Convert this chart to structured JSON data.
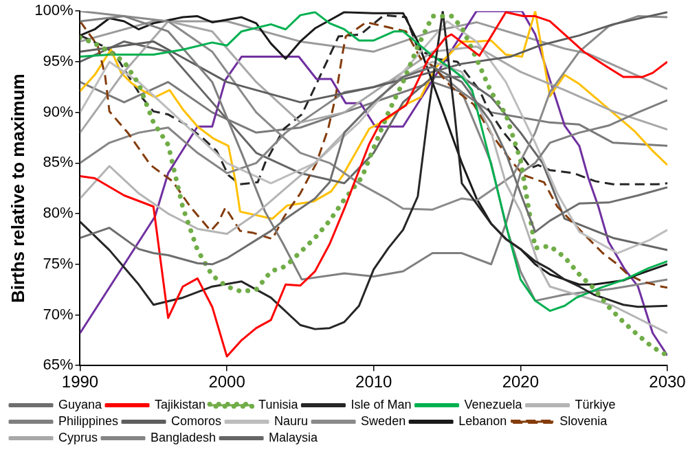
{
  "chart_data": {
    "type": "line",
    "ylabel": "Births relative to maximum",
    "xlim": [
      1990,
      2030
    ],
    "xticks": [
      1990,
      2000,
      2010,
      2020,
      2030
    ],
    "ylim": [
      65,
      100
    ],
    "yticks": [
      {
        "value": 65,
        "label": "65%"
      },
      {
        "value": 70,
        "label": "70%"
      },
      {
        "value": 75,
        "label": "75%"
      },
      {
        "value": 80,
        "label": "80%"
      },
      {
        "value": 85,
        "label": "85%"
      },
      {
        "value": 90,
        "label": "90%"
      },
      {
        "value": 95,
        "label": "95%"
      },
      {
        "value": 100,
        "label": "100%"
      }
    ],
    "grid": false,
    "legend": "bottom",
    "marker": "none",
    "series": [
      {
        "name": "Guyana",
        "color": "#6e6e6e",
        "line_style": "solid",
        "x": [
          1990,
          1992,
          1994,
          1995,
          1996,
          1998,
          1999,
          2000,
          2001,
          2002,
          2003,
          2004,
          2005,
          2006,
          2007,
          2008,
          2010,
          2012,
          2014,
          2016,
          2018,
          2019,
          2020,
          2021,
          2022,
          2024,
          2026,
          2028,
          2030
        ],
        "values": [
          77.6,
          78.6,
          76.5,
          76.1,
          75.9,
          75.1,
          75,
          75.6,
          76.5,
          77.4,
          78.3,
          79.5,
          80.5,
          81.5,
          83.1,
          88,
          91,
          93.5,
          94.5,
          93,
          89,
          86,
          82,
          78.2,
          79.3,
          81,
          81.1,
          81.8,
          82.6
        ]
      },
      {
        "name": "Tajikistan",
        "color": "#ff0000",
        "line_style": "solid",
        "x": [
          1990,
          1991,
          1993,
          1995,
          1996,
          1997,
          1998,
          1999,
          2000,
          2001,
          2002,
          2003,
          2004,
          2005,
          2006,
          2007,
          2008,
          2009.7,
          2010.5,
          2012.2,
          2013.7,
          2014.9,
          2015.3,
          2017.2,
          2019,
          2020.2,
          2021,
          2022,
          2023,
          2024.3,
          2026,
          2027,
          2028.3,
          2029,
          2030
        ],
        "values": [
          83.7,
          83.5,
          81.8,
          80.7,
          69.7,
          72.8,
          73.6,
          70.8,
          65.9,
          67.5,
          68.7,
          69.5,
          73,
          72.9,
          74.3,
          77,
          80.5,
          86.9,
          89.1,
          90.7,
          95.2,
          97.4,
          97.7,
          95.6,
          99.9,
          99.5,
          99.5,
          99,
          97.7,
          96,
          94.4,
          93.5,
          93.5,
          93.9,
          95
        ]
      },
      {
        "name": "Tunisia",
        "color": "#70ad47",
        "line_style": "dotted",
        "x": [
          1990,
          1991,
          1992,
          1993,
          1994,
          1995,
          1996,
          1997,
          1998,
          1999,
          2000,
          2001,
          2002,
          2003,
          2004,
          2005,
          2006,
          2007,
          2008,
          2009.2,
          2010,
          2011,
          2012,
          2013,
          2014,
          2015.3,
          2016,
          2017,
          2018,
          2019,
          2020,
          2021,
          2022,
          2023,
          2024,
          2025,
          2026,
          2027,
          2028,
          2029,
          2030
        ],
        "values": [
          97.4,
          96.8,
          96,
          95,
          92.8,
          89,
          86.8,
          80.6,
          76.4,
          73.9,
          72.8,
          72.3,
          72.5,
          74.3,
          74.8,
          76.2,
          77.6,
          79.3,
          81.4,
          83.6,
          86.5,
          90,
          93,
          96.5,
          99.5,
          99.5,
          98.4,
          95.3,
          92,
          89.8,
          85.3,
          76.6,
          76.8,
          75.7,
          74,
          72.6,
          70.8,
          69.3,
          68,
          66.8,
          66
        ]
      },
      {
        "name": "Isle of Man",
        "color": "#262626",
        "line_style": "solid",
        "x": [
          1990,
          1992,
          1994,
          1995,
          1997,
          1999,
          2001,
          2003,
          2005,
          2006,
          2007,
          2008,
          2009,
          2010,
          2011,
          2012,
          2013,
          2013.7,
          2014.7,
          2015.5,
          2016,
          2017,
          2018,
          2019,
          2020,
          2021,
          2022,
          2023,
          2024,
          2025,
          2026,
          2027,
          2028,
          2030
        ],
        "values": [
          79.2,
          76.4,
          73,
          71,
          71.7,
          72.8,
          73.3,
          71.7,
          69,
          68.6,
          68.7,
          69.3,
          70.9,
          74.5,
          76.6,
          78.4,
          81.7,
          89.8,
          100,
          90,
          83,
          81,
          79,
          77.5,
          76.5,
          75.3,
          74.5,
          73.5,
          72.8,
          72,
          71.5,
          71,
          70.8,
          70.9
        ]
      },
      {
        "name": "Venezuela",
        "color": "#00b050",
        "line_style": "solid",
        "x": [
          1990,
          1992,
          1995,
          1997,
          1999,
          2000,
          2001,
          2003,
          2004,
          2005,
          2006,
          2007,
          2008,
          2009,
          2010,
          2011.4,
          2012,
          2013,
          2014,
          2015.2,
          2016,
          2016.7,
          2018.3,
          2019.2,
          2020,
          2021,
          2022,
          2023,
          2023.8,
          2025.5,
          2027.1,
          2028.7,
          2030
        ],
        "values": [
          95.5,
          95.7,
          95.7,
          96.2,
          96.9,
          96.6,
          98,
          98.7,
          98.2,
          99.6,
          99.9,
          98.8,
          98.2,
          97.1,
          97.1,
          98,
          98,
          96.8,
          95.6,
          94.4,
          93.5,
          92.2,
          83.1,
          77.8,
          73.5,
          71.4,
          70.4,
          70.9,
          71.7,
          72.7,
          73.5,
          74.6,
          75.3
        ]
      },
      {
        "name": "Türkiye",
        "color": "#b4b4b4",
        "line_style": "solid",
        "x": [
          1990,
          1992,
          1994,
          1996,
          1998,
          2000,
          2002,
          2004,
          2006,
          2008,
          2010,
          2012,
          2014,
          2016,
          2018,
          2019,
          2020,
          2021.3,
          2022,
          2026.3,
          2030
        ],
        "values": [
          81.5,
          84.7,
          82,
          80,
          78.5,
          78,
          80,
          82.5,
          85,
          88,
          91,
          93.5,
          95,
          94,
          88,
          83,
          80.2,
          74.7,
          72.8,
          70.9,
          68.2
        ]
      },
      {
        "name": "Philippines",
        "color": "#7f7f7f",
        "line_style": "solid",
        "x": [
          1990,
          1993,
          1996,
          1999,
          2001,
          2002.6,
          2003.8,
          2005.1,
          2008,
          2010,
          2012,
          2014,
          2016,
          2018,
          2019,
          2020,
          2021,
          2022,
          2024,
          2026,
          2028,
          2030
        ],
        "values": [
          99,
          99.5,
          98,
          93,
          86,
          80.2,
          77.1,
          73.5,
          74.1,
          73.8,
          74.3,
          76.1,
          76.1,
          75,
          79,
          84,
          85,
          87,
          88,
          88.7,
          90,
          91.2
        ]
      },
      {
        "name": "Comoros",
        "color": "#5e5e5e",
        "line_style": "solid",
        "x": [
          1990,
          1995,
          2000,
          2005,
          2010,
          2014,
          2016,
          2019.3,
          2021.3,
          2024,
          2026.3,
          2030
        ],
        "values": [
          96,
          97,
          93,
          91,
          92.5,
          94,
          94.8,
          95.5,
          96.6,
          97.6,
          98.7,
          99.9
        ]
      },
      {
        "name": "Nauru",
        "color": "#bdbdbd",
        "line_style": "solid",
        "x": [
          1990,
          1992,
          1994,
          1997,
          2000,
          2003,
          2006,
          2009,
          2012,
          2015,
          2017,
          2019,
          2021,
          2022.5,
          2024,
          2026.6,
          2028.8,
          2030
        ],
        "values": [
          90,
          95,
          93,
          89,
          85,
          83,
          85,
          89,
          94,
          99,
          97,
          93,
          87,
          82,
          78.2,
          76.1,
          77.4,
          78.4
        ]
      },
      {
        "name": "Sweden",
        "color": "#8a8a8a",
        "line_style": "solid",
        "x": [
          1990,
          1993,
          1996,
          1999,
          2002,
          2005,
          2007,
          2009,
          2011,
          2012,
          2014,
          2016,
          2017,
          2019.5,
          2021,
          2022,
          2024,
          2026,
          2028,
          2030
        ],
        "values": [
          100,
          99.5,
          99,
          96,
          90,
          86,
          85,
          83,
          81.4,
          80.5,
          80.4,
          81.5,
          81.3,
          83.8,
          88,
          92,
          96,
          98.5,
          99.5,
          99.4
        ]
      },
      {
        "name": "Lebanon",
        "color": "#1a1a1a",
        "line_style": "solid",
        "x": [
          1990,
          1991,
          1992,
          1993,
          1994,
          1995,
          1997,
          1998,
          1999,
          2001,
          2002,
          2003,
          2004,
          2005,
          2006,
          2007,
          2008,
          2010,
          2012,
          2013,
          2014,
          2015,
          2016,
          2017,
          2018,
          2019,
          2020,
          2021,
          2022,
          2023,
          2024,
          2025,
          2026,
          2027,
          2028,
          2029,
          2030
        ],
        "values": [
          97.6,
          98.2,
          99.3,
          99,
          98.2,
          98.8,
          99.4,
          99.5,
          98.9,
          99.4,
          98.8,
          96.8,
          95.3,
          97,
          98.3,
          99.1,
          99.9,
          99.8,
          99.8,
          97,
          93,
          89,
          85,
          81.5,
          79,
          77.5,
          76.5,
          75,
          74,
          73.5,
          73,
          73,
          73.2,
          73.4,
          74,
          74.5,
          75
        ]
      },
      {
        "name": "Slovenia",
        "color": "#843c0c",
        "line_style": "dashed",
        "x": [
          1990,
          1991.2,
          1991.7,
          1992,
          1993.3,
          1994.8,
          1996.3,
          1997.5,
          1998.9,
          1999.4,
          1999.9,
          2000.9,
          2001.8,
          2003.1,
          2003.9,
          2005,
          2006.1,
          2006.9,
          2007.4,
          2007.9,
          2008.1,
          2009.5,
          2011,
          2012.2,
          2013.2,
          2014,
          2015.3,
          2016.8,
          2018,
          2019.2,
          2020.2,
          2021.6,
          2022.5,
          2023.3,
          2024.1,
          2025.6,
          2026.5,
          2027.3,
          2028.3,
          2029.6,
          2030
        ],
        "values": [
          99,
          96.6,
          93.7,
          90.1,
          87.9,
          84.8,
          83.2,
          80.7,
          78.3,
          79.1,
          80.6,
          78.3,
          78.1,
          77.5,
          79.7,
          82,
          85,
          88.4,
          91.5,
          96,
          97.5,
          98.9,
          98.4,
          98,
          95.3,
          94.6,
          92.5,
          90.8,
          87.9,
          85.5,
          83.8,
          83.1,
          80.7,
          79.5,
          78.3,
          76.1,
          75.1,
          74,
          73.3,
          72.8,
          72.7
        ]
      },
      {
        "name": "Cyprus",
        "color": "#a8a8a8",
        "line_style": "solid",
        "x": [
          1990,
          1993,
          1996,
          1999,
          2002,
          2005,
          2008,
          2011,
          2014,
          2017,
          2020,
          2023,
          2026.3,
          2030
        ],
        "values": [
          88,
          94,
          99,
          98,
          93,
          89,
          90,
          93,
          96,
          96.5,
          94,
          92.2,
          90.1,
          88.3
        ]
      },
      {
        "name": "Bangladesh",
        "color": "#858585",
        "line_style": "solid",
        "x": [
          1990,
          1992,
          1994,
          1996,
          1998,
          2000,
          2002,
          2004,
          2006,
          2008,
          2010,
          2012,
          2014,
          2016,
          2018,
          2019,
          2020,
          2021,
          2023,
          2026.3,
          2030
        ],
        "values": [
          85,
          87,
          88,
          88.5,
          86,
          84,
          85,
          88,
          90,
          92,
          92.5,
          93.5,
          94.5,
          92,
          85,
          78.8,
          74.3,
          71.4,
          72,
          72.6,
          73.5
        ]
      },
      {
        "name": "Malaysia",
        "color": "#666666",
        "line_style": "solid",
        "x": [
          1990,
          1993,
          1996,
          1999,
          2002,
          2005,
          2008,
          2010,
          2012,
          2014,
          2016,
          2018,
          2020,
          2021.5,
          2023,
          2026.3,
          2030
        ],
        "values": [
          95,
          97,
          96,
          91,
          86,
          84,
          83,
          86,
          91,
          93.5,
          93.5,
          91.5,
          88,
          85,
          79.5,
          77.6,
          76.4
        ]
      },
      {
        "color": "#ffc000",
        "line_style": "solid",
        "x": [
          1990,
          1991,
          1992.1,
          1992.8,
          1993.5,
          1994.2,
          1995.1,
          1996.1,
          1997,
          1998,
          1999.1,
          2000.1,
          2000.6,
          2000.9,
          2003.1,
          2004.1,
          2005.9,
          2007.1,
          2007.9,
          2009.7,
          2010.9,
          2012.2,
          2013.2,
          2014.2,
          2015.2,
          2016,
          2017,
          2018,
          2019,
          2020.1,
          2021,
          2022,
          2023,
          2024,
          2025.3,
          2026.6,
          2027.8,
          2029,
          2030
        ],
        "values": [
          92.1,
          93.7,
          96.2,
          93.9,
          92.9,
          92.2,
          91.5,
          92.2,
          90.3,
          88.6,
          87.4,
          86.7,
          83.1,
          80.2,
          79.5,
          80.8,
          81.2,
          82.2,
          83.8,
          88.4,
          89.3,
          90.8,
          91.5,
          94.4,
          95.8,
          97,
          97,
          97.1,
          95.7,
          95.5,
          100,
          91.6,
          93.7,
          92.8,
          91.2,
          89.6,
          88.1,
          86.2,
          84.8
        ]
      },
      {
        "color": "#7030a0",
        "line_style": "solid",
        "x": [
          1990,
          1995.1,
          1996,
          1998,
          1999,
          1999.9,
          2001,
          2004.9,
          2006.1,
          2007.1,
          2008.1,
          2009.1,
          2010.1,
          2012,
          2017,
          2020.1,
          2021,
          2022,
          2023,
          2024,
          2024.6,
          2025.3,
          2026,
          2027.1,
          2028,
          2029,
          2030
        ],
        "values": [
          68.2,
          79.7,
          84,
          88.6,
          88.6,
          93.2,
          95.5,
          95.5,
          93.3,
          93.3,
          90.9,
          90.9,
          88.6,
          88.6,
          100,
          100,
          97.7,
          93.2,
          88.7,
          86.7,
          83.6,
          80.7,
          77.2,
          74.5,
          72.8,
          68.2,
          66
        ]
      },
      {
        "color": "#262626",
        "line_style": "dashed",
        "x": [
          1990,
          1991.5,
          1992.3,
          1994.2,
          1995,
          1996,
          1997.2,
          1998.4,
          1999.3,
          2000.1,
          2000.9,
          2002.1,
          2002.6,
          2003.9,
          2005.1,
          2005.9,
          2006.9,
          2007.6,
          2009.1,
          2010.7,
          2012.2,
          2013,
          2014.2,
          2015.7,
          2017.2,
          2017.8,
          2018.8,
          2019.7,
          2020.7,
          2021.2,
          2022,
          2023.6,
          2025.1,
          2026.3,
          2029.3,
          2030
        ],
        "values": [
          97.6,
          96.6,
          95.9,
          91.5,
          90.1,
          89.8,
          88.8,
          87.4,
          86.2,
          83.8,
          82.9,
          83.1,
          85,
          88.4,
          89.8,
          92.2,
          95.3,
          97.5,
          97.7,
          99.6,
          99.4,
          96.3,
          95.3,
          95,
          92.2,
          90.3,
          88.1,
          86.5,
          84.5,
          84.8,
          84.3,
          84,
          83.2,
          82.9,
          82.9,
          83
        ]
      },
      {
        "color": "#9a9a9a",
        "line_style": "solid",
        "x": [
          1990,
          1995,
          2000,
          2005,
          2010,
          2014,
          2017,
          2023,
          2024.6,
          2030
        ],
        "values": [
          97,
          99,
          99,
          97,
          96,
          98,
          98.9,
          96.3,
          95.8,
          92.3
        ]
      },
      {
        "color": "#7a7a7a",
        "line_style": "solid",
        "x": [
          1990,
          1993,
          1996,
          1999,
          2002,
          2005,
          2008,
          2011,
          2014,
          2016,
          2018,
          2020,
          2022,
          2024,
          2026.3,
          2030
        ],
        "values": [
          93,
          91,
          93,
          90,
          88,
          88.5,
          90,
          91.5,
          93,
          92,
          90,
          89.5,
          89,
          88.8,
          87,
          86.7
        ]
      }
    ]
  }
}
